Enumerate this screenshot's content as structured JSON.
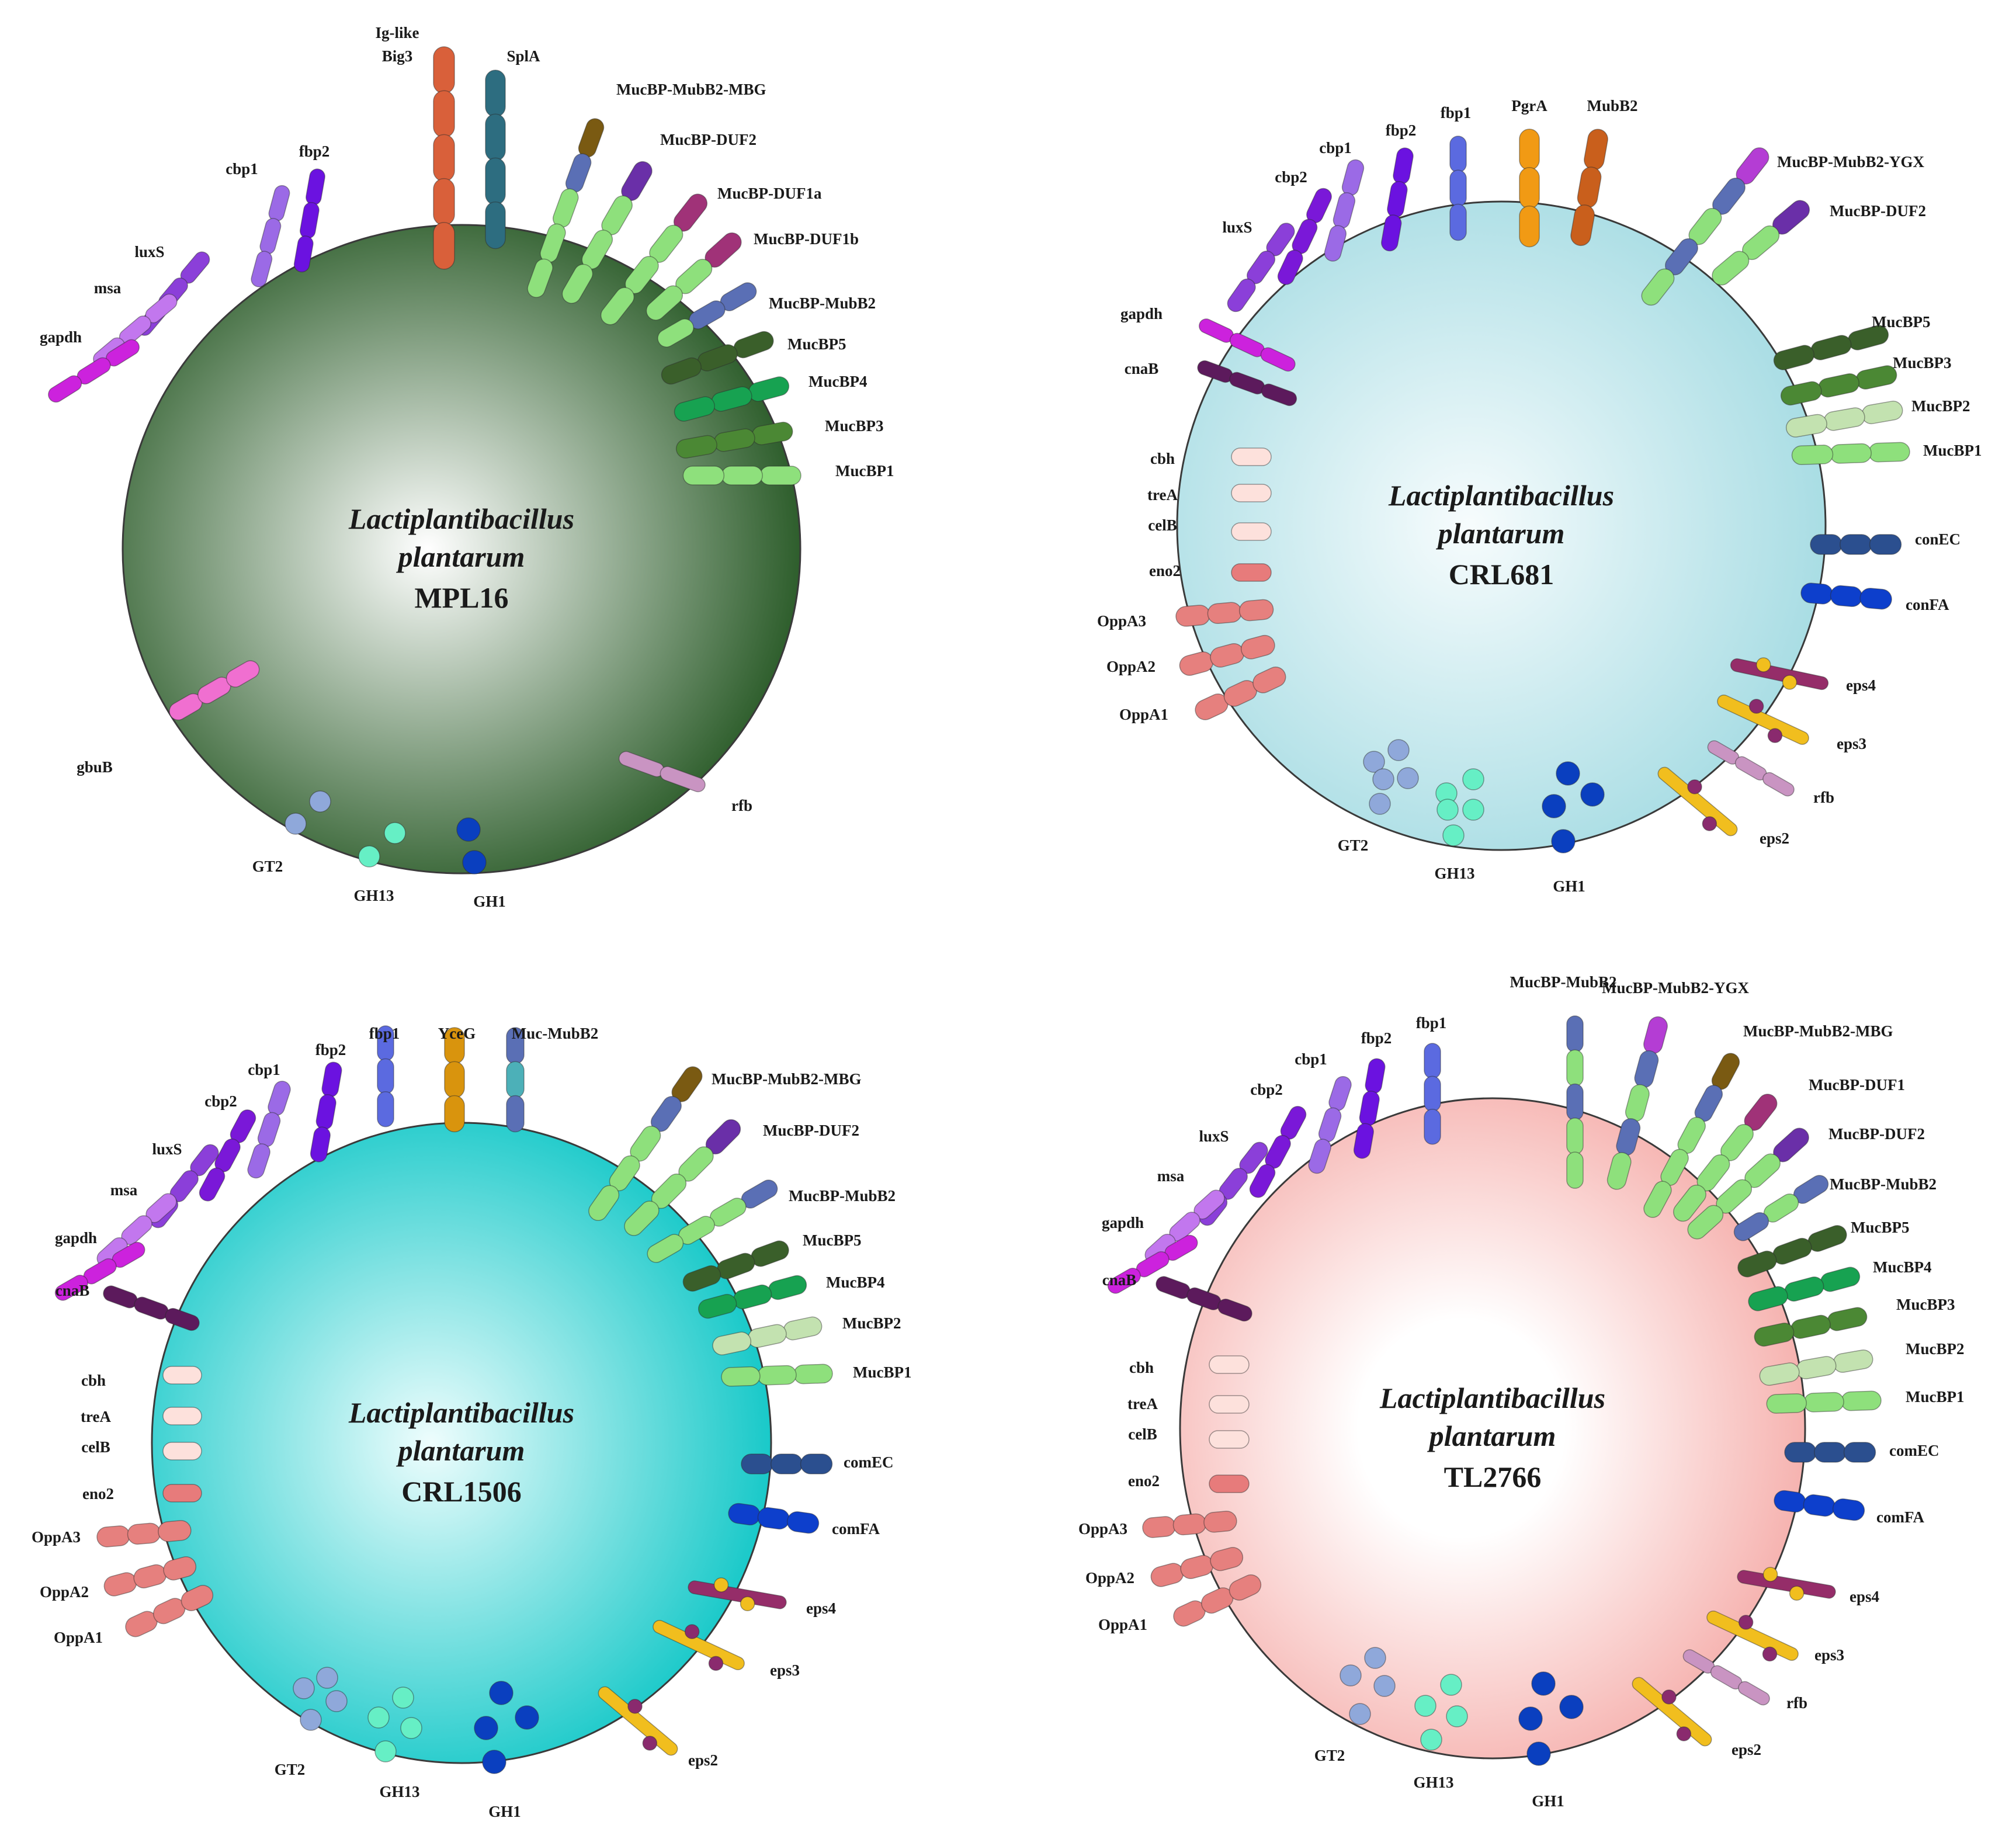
{
  "colors": {
    "bigfoot": "#d9603a",
    "spla": "#2d6d80",
    "mubb2": "#5a6fb5",
    "ygx": "#b43dd4",
    "mbg": "#7a5a12",
    "duf2": "#6a2fa8",
    "duf1": "#a03278",
    "mucbp5": "#3a5f2a",
    "mucbp4": "#17a251",
    "mucbp3": "#4b8834",
    "mucbp2": "#c3e2b0",
    "mucbp1": "#8ee07c",
    "fbp1": "#5b6ae0",
    "fbp2": "#6b12e0",
    "cbp1": "#9b6ae6",
    "cbp2": "#7a18d8",
    "luxs": "#8b3fd9",
    "msa": "#c277ee",
    "gapdh": "#cc22dd",
    "cnab": "#5c1a5c",
    "gbub": "#f06fd0",
    "pale": "#fde1dc",
    "eno2": "#e77b7b",
    "oppa": "#e6807e",
    "comec": "#2b4f8f",
    "comfa": "#0d3fcc",
    "eps_bar": "#f1be1e",
    "eps4_bar": "#952d69",
    "eps_dot": "#8a2a6e",
    "rfb": "#c994c2",
    "gt2": "#8fa8da",
    "gh13": "#66efc5",
    "gh1": "#0a3fbf",
    "pgra": "#f19a14",
    "mubb2_brown": "#c95f1c",
    "yceg": "#d9940d",
    "muc_mubb2_mid": "#4cb0b8"
  },
  "panels": [
    {
      "id": "MPL16",
      "species_line1": "Lactiplantibacillus",
      "species_line2": "plantarum",
      "strain": "MPL16",
      "cell": {
        "inner": "#ffffff",
        "outer": "#2e5e2c"
      },
      "labels": {
        "iglike": "Ig-like",
        "big3": "Big3",
        "spla": "SplA",
        "mbg": "MucBP-MubB2-MBG",
        "duf2": "MucBP-DUF2",
        "duf1a": "MucBP-DUF1a",
        "duf1b": "MucBP-DUF1b",
        "mubb2": "MucBP-MubB2",
        "mucbp5": "MucBP5",
        "mucbp4": "MucBP4",
        "mucbp3": "MucBP3",
        "mucbp1": "MucBP1",
        "fbp2": "fbp2",
        "cbp1": "cbp1",
        "luxs": "luxS",
        "msa": "msa",
        "gapdh": "gapdh",
        "gbub": "gbuB",
        "rfb": "rfb",
        "gt2": "GT2",
        "gh13": "GH13",
        "gh1": "GH1"
      }
    },
    {
      "id": "CRL681",
      "species_line1": "Lactiplantibacillus",
      "species_line2": "plantarum",
      "strain": "CRL681",
      "cell": {
        "inner": "#f7fcfd",
        "outer": "#a9dde4"
      },
      "labels": {
        "pgra": "PgrA",
        "mubb2": "MubB2",
        "fbp1": "fbp1",
        "fbp2": "fbp2",
        "cbp1": "cbp1",
        "cbp2": "cbp2",
        "luxs": "luxS",
        "ygx": "MucBP-MubB2-YGX",
        "duf2": "MucBP-DUF2",
        "mucbp5": "MucBP5",
        "mucbp3": "MucBP3",
        "mucbp2": "MucBP2",
        "mucbp1": "MucBP1",
        "gapdh": "gapdh",
        "cnab": "cnaB",
        "cbh": "cbh",
        "trea": "treA",
        "celb": "celB",
        "eno2": "eno2",
        "oppa3": "OppA3",
        "oppa2": "OppA2",
        "oppa1": "OppA1",
        "comec": "conEC",
        "comfa": "conFA",
        "eps4": "eps4",
        "eps3": "eps3",
        "rfb": "rfb",
        "eps2": "eps2",
        "gt2": "GT2",
        "gh13": "GH13",
        "gh1": "GH1"
      }
    },
    {
      "id": "CRL1506",
      "species_line1": "Lactiplantibacillus",
      "species_line2": "plantarum",
      "strain": "CRL1506",
      "cell": {
        "inner": "#eefdfd",
        "outer": "#19c9c9"
      },
      "labels": {
        "fbp1": "fbp1",
        "yceg": "YceG",
        "muc_mubb2": "Muc-MubB2",
        "fbp2": "fbp2",
        "cbp1": "cbp1",
        "cbp2": "cbp2",
        "luxs": "luxS",
        "msa": "msa",
        "gapdh": "gapdh",
        "cnab": "cnaB",
        "mbg": "MucBP-MubB2-MBG",
        "duf2": "MucBP-DUF2",
        "mubb2": "MucBP-MubB2",
        "mucbp5": "MucBP5",
        "mucbp4": "MucBP4",
        "mucbp2": "MucBP2",
        "mucbp1": "MucBP1",
        "cbh": "cbh",
        "trea": "treA",
        "celb": "celB",
        "eno2": "eno2",
        "oppa3": "OppA3",
        "oppa2": "OppA2",
        "oppa1": "OppA1",
        "comec": "comEC",
        "comfa": "comFA",
        "eps4": "eps4",
        "eps3": "eps3",
        "eps2": "eps2",
        "gt2": "GT2",
        "gh13": "GH13",
        "gh1": "GH1"
      }
    },
    {
      "id": "TL2766",
      "species_line1": "Lactiplantibacillus",
      "species_line2": "plantarum",
      "strain": "TL2766",
      "cell": {
        "inner": "#ffffff",
        "outer": "#f6b3b0"
      },
      "labels": {
        "mubb2": "MucBP-MubB2",
        "ygx": "MucBP-MubB2-YGX",
        "mbg": "MucBP-MubB2-MBG",
        "duf1": "MucBP-DUF1",
        "duf2": "MucBP-DUF2",
        "mubb2b": "MucBP-MubB2",
        "mucbp5": "MucBP5",
        "mucbp4": "MucBP4",
        "mucbp3": "MucBP3",
        "mucbp2": "MucBP2",
        "mucbp1": "MucBP1",
        "fbp1": "fbp1",
        "fbp2": "fbp2",
        "cbp1": "cbp1",
        "cbp2": "cbp2",
        "luxs": "luxS",
        "msa": "msa",
        "gapdh": "gapdh",
        "cnab": "cnaB",
        "cbh": "cbh",
        "trea": "treA",
        "celb": "celB",
        "eno2": "eno2",
        "oppa3": "OppA3",
        "oppa2": "OppA2",
        "oppa1": "OppA1",
        "comec": "comEC",
        "comfa": "comFA",
        "eps4": "eps4",
        "eps3": "eps3",
        "rfb": "rfb",
        "eps2": "eps2",
        "gt2": "GT2",
        "gh13": "GH13",
        "gh1": "GH1"
      }
    }
  ]
}
